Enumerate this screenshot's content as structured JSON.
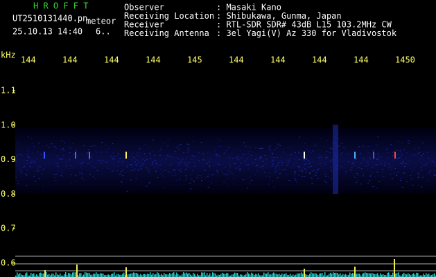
{
  "app": {
    "name": "H R O F F T",
    "file": "UT2510131440.pn",
    "mode": "meteor",
    "datetime": "25.10.13 14:40",
    "count": "6.."
  },
  "info": [
    {
      "key": "Observer",
      "value": ": Masaki Kano"
    },
    {
      "key": "Receiving Location",
      "value": ": Shibukawa, Gunma, Japan"
    },
    {
      "key": "Receiver",
      "value": ": RTL-SDR SDR# 43dB L15 103.2MHz CW"
    },
    {
      "key": "Receiving Antenna",
      "value": ": 3el Yagi(V) Az 330 for Vladivostok"
    }
  ],
  "x_axis": {
    "labels": [
      "144",
      "144",
      "144",
      "144",
      "145",
      "144",
      "144",
      "144",
      "144",
      "1450"
    ]
  },
  "y_axis": {
    "unit": "kHz",
    "labels": [
      "1.1",
      "1.0",
      "0.9",
      "0.8",
      "0.7",
      "0.6"
    ]
  }
}
